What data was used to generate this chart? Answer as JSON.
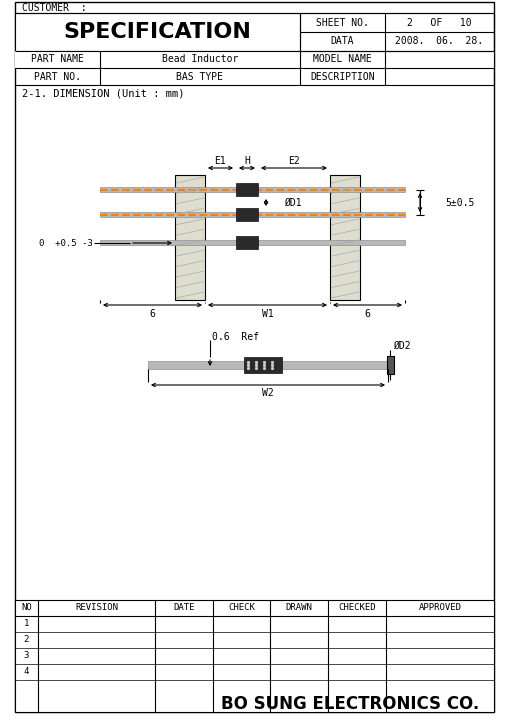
{
  "customer_text": "CUSTOMER  :",
  "title": "SPECIFICATION",
  "sheet_no": "SHEET NO.",
  "sheet_val": "2   OF   10",
  "data_label": "DATA",
  "data_val": "2008.  06.  28.",
  "part_name_label": "PART NAME",
  "part_name_val": "Bead Inductor",
  "model_name_label": "MODEL NAME",
  "part_no_label": "PART NO.",
  "part_no_val": "BAS TYPE",
  "desc_label": "DESCRIPTION",
  "dim_title": "2-1. DIMENSION (Unit : mm)",
  "revision_headers": [
    "NO",
    "REVISION",
    "DATE",
    "CHECK",
    "DRAWN",
    "CHECKED",
    "APPROVED"
  ],
  "revision_rows": [
    1,
    2,
    3,
    4
  ],
  "footer": "BO SUNG ELECTRONICS CO.",
  "bg_color": "#ffffff",
  "beige_color": "#deded0",
  "gray_wire_color": "#b8b8b8",
  "dark_color": "#2a2a2a",
  "orange_color": "#ff8000",
  "black": "#000000"
}
